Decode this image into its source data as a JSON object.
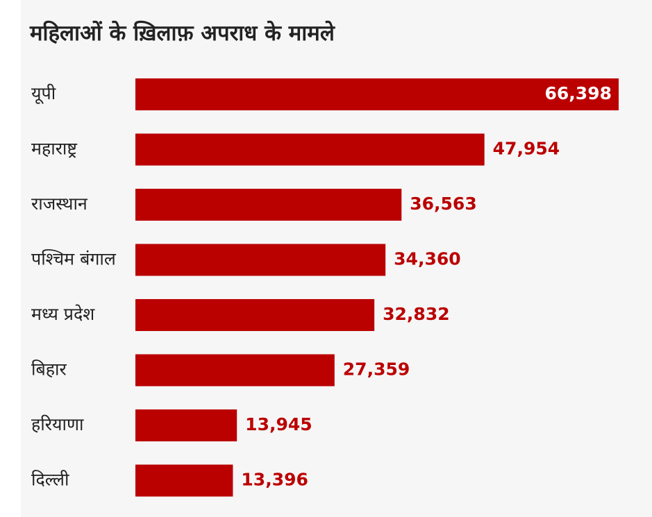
{
  "title": "महिलाओं के ख़िलाफ़ अपराध के मामले",
  "colors": {
    "bar": "#bb0000",
    "value_text": "#bb0000",
    "value_text_inside": "#ffffff"
  },
  "chart_data": {
    "type": "bar",
    "orientation": "horizontal",
    "title": "महिलाओं के ख़िलाफ़ अपराध के मामले",
    "categories": [
      "यूपी",
      "महाराष्ट्र",
      "राजस्थान",
      "पश्चिम बंगाल",
      "मध्य प्रदेश",
      "बिहार",
      "हरियाणा",
      "दिल्ली"
    ],
    "values": [
      66398,
      47954,
      36563,
      34360,
      32832,
      27359,
      13945,
      13396
    ],
    "value_labels": [
      "66,398",
      "47,954",
      "36,563",
      "34,360",
      "32,832",
      "27,359",
      "13,945",
      "13,396"
    ],
    "xlim": [
      0,
      66398
    ],
    "grid": false,
    "legend": "none"
  }
}
